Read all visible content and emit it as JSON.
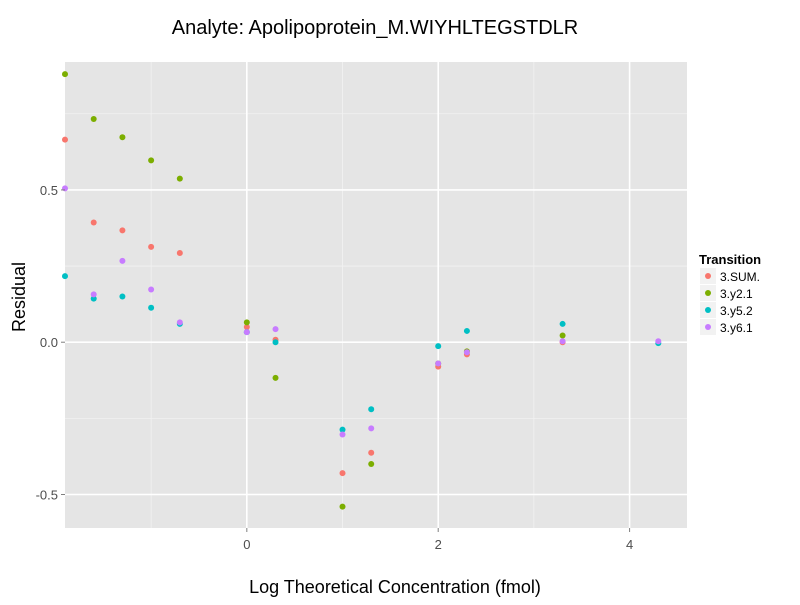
{
  "chart_data": {
    "type": "scatter",
    "title": "Analyte: Apolipoprotein_M.WIYHLTEGSTDLR",
    "xlabel": "Log Theoretical Concentration (fmol)",
    "ylabel": "Residual",
    "xlim": [
      -1.9,
      4.6
    ],
    "ylim": [
      -0.61,
      0.92
    ],
    "x_ticks": [
      0,
      2,
      4
    ],
    "x_tick_labels": [
      "0",
      "2",
      "4"
    ],
    "y_ticks": [
      -0.5,
      0.0,
      0.5
    ],
    "y_tick_labels": [
      "-0.5",
      "0.0",
      "0.5"
    ],
    "grid": true,
    "legend": {
      "title": "Transition",
      "position": "right"
    },
    "series": [
      {
        "name": "3.SUM.",
        "color": "#F8766D",
        "points": [
          [
            -1.9,
            0.665
          ],
          [
            -1.6,
            0.393
          ],
          [
            -1.3,
            0.367
          ],
          [
            -1.0,
            0.313
          ],
          [
            -0.7,
            0.293
          ],
          [
            0.0,
            0.05
          ],
          [
            0.3,
            0.008
          ],
          [
            1.0,
            -0.43
          ],
          [
            1.3,
            -0.363
          ],
          [
            2.0,
            -0.08
          ],
          [
            2.3,
            -0.04
          ],
          [
            3.3,
            0.0
          ]
        ]
      },
      {
        "name": "3.y2.1",
        "color": "#7CAE00",
        "points": [
          [
            -1.9,
            0.88
          ],
          [
            -1.6,
            0.733
          ],
          [
            -1.3,
            0.673
          ],
          [
            -1.0,
            0.597
          ],
          [
            -0.7,
            0.537
          ],
          [
            0.0,
            0.065
          ],
          [
            0.3,
            -0.117
          ],
          [
            1.0,
            -0.54
          ],
          [
            1.3,
            -0.4
          ],
          [
            2.0,
            -0.07
          ],
          [
            2.3,
            -0.03
          ],
          [
            3.3,
            0.022
          ]
        ]
      },
      {
        "name": "3.y5.2",
        "color": "#00BFC4",
        "points": [
          [
            -1.9,
            0.217
          ],
          [
            -1.6,
            0.143
          ],
          [
            -1.3,
            0.15
          ],
          [
            -1.0,
            0.113
          ],
          [
            -0.7,
            0.06
          ],
          [
            0.0,
            0.033
          ],
          [
            0.3,
            0.0
          ],
          [
            1.0,
            -0.287
          ],
          [
            1.3,
            -0.22
          ],
          [
            2.0,
            -0.013
          ],
          [
            2.3,
            0.037
          ],
          [
            3.3,
            0.06
          ],
          [
            4.3,
            -0.003
          ]
        ]
      },
      {
        "name": "3.y6.1",
        "color": "#C77CFF",
        "points": [
          [
            -1.9,
            0.505
          ],
          [
            -1.6,
            0.157
          ],
          [
            -1.3,
            0.267
          ],
          [
            -1.0,
            0.173
          ],
          [
            -0.7,
            0.065
          ],
          [
            0.0,
            0.033
          ],
          [
            0.3,
            0.043
          ],
          [
            1.0,
            -0.303
          ],
          [
            1.3,
            -0.283
          ],
          [
            2.0,
            -0.07
          ],
          [
            2.3,
            -0.033
          ],
          [
            3.3,
            0.003
          ],
          [
            4.3,
            0.003
          ]
        ]
      }
    ]
  }
}
